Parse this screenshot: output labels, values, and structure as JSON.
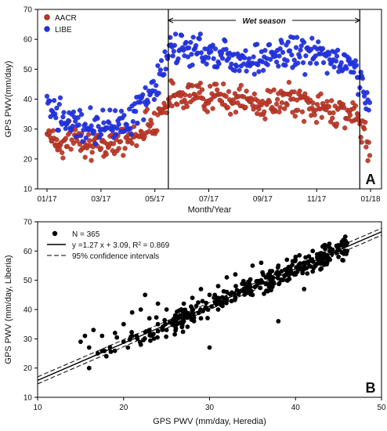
{
  "chart_data": [
    {
      "panel_label": "A",
      "type": "scatter",
      "xlabel": "Month/Year",
      "ylabel": "GPS PWV(mm/day)",
      "ylim": [
        10,
        70
      ],
      "x_tick_labels": [
        "01/17",
        "03/17",
        "05/17",
        "07/17",
        "09/17",
        "11/17",
        "01/18"
      ],
      "y_ticks": [
        10,
        20,
        30,
        40,
        50,
        60,
        70
      ],
      "legend_position": "top-left",
      "annotation": "Wet season",
      "wet_season_start_month": 4.5,
      "wet_season_end_month": 11.6,
      "series": [
        {
          "name": "AACR",
          "color": "#8B2512",
          "marker_fill": "#c0392b",
          "values_by_month": [
            {
              "month": 0,
              "pwv": 30
            },
            {
              "month": 0.5,
              "pwv": 24
            },
            {
              "month": 1,
              "pwv": 28
            },
            {
              "month": 1.5,
              "pwv": 26
            },
            {
              "month": 2,
              "pwv": 23
            },
            {
              "month": 2.5,
              "pwv": 27
            },
            {
              "month": 3,
              "pwv": 26
            },
            {
              "month": 3.5,
              "pwv": 30
            },
            {
              "month": 4,
              "pwv": 33
            },
            {
              "month": 4.5,
              "pwv": 40
            },
            {
              "month": 5,
              "pwv": 42
            },
            {
              "month": 6,
              "pwv": 41
            },
            {
              "month": 7,
              "pwv": 40
            },
            {
              "month": 8,
              "pwv": 38
            },
            {
              "month": 9,
              "pwv": 40
            },
            {
              "month": 10,
              "pwv": 37
            },
            {
              "month": 11,
              "pwv": 36
            },
            {
              "month": 11.5,
              "pwv": 34
            },
            {
              "month": 12,
              "pwv": 22
            }
          ]
        },
        {
          "name": "LIBE",
          "color": "#1f2bd6",
          "marker_fill": "#2233dd",
          "values_by_month": [
            {
              "month": 0,
              "pwv": 41
            },
            {
              "month": 0.5,
              "pwv": 34
            },
            {
              "month": 1,
              "pwv": 33
            },
            {
              "month": 1.5,
              "pwv": 31
            },
            {
              "month": 2,
              "pwv": 31
            },
            {
              "month": 2.5,
              "pwv": 32
            },
            {
              "month": 3,
              "pwv": 33
            },
            {
              "month": 3.5,
              "pwv": 38
            },
            {
              "month": 4,
              "pwv": 44
            },
            {
              "month": 4.5,
              "pwv": 55
            },
            {
              "month": 5,
              "pwv": 57
            },
            {
              "month": 6,
              "pwv": 56
            },
            {
              "month": 7,
              "pwv": 54
            },
            {
              "month": 8,
              "pwv": 53
            },
            {
              "month": 9,
              "pwv": 56
            },
            {
              "month": 10,
              "pwv": 55
            },
            {
              "month": 11,
              "pwv": 52
            },
            {
              "month": 11.5,
              "pwv": 50
            },
            {
              "month": 12,
              "pwv": 35
            }
          ]
        }
      ]
    },
    {
      "panel_label": "B",
      "type": "scatter",
      "xlabel": "GPS PWV (mm/day, Heredia)",
      "ylabel": "GPS PWV (mm/day, Liberia)",
      "xlim": [
        10,
        50
      ],
      "ylim": [
        10,
        70
      ],
      "x_ticks": [
        10,
        20,
        30,
        40,
        50
      ],
      "y_ticks": [
        10,
        20,
        30,
        40,
        50,
        60,
        70
      ],
      "legend_position": "top-left",
      "n_label": "N = 365",
      "fit_label": "y =1.27 x + 3.09, R² = 0.869",
      "ci_label": "95% confidence intervals",
      "fit": {
        "slope": 1.27,
        "intercept": 3.09,
        "x_range": [
          10,
          50
        ]
      },
      "ci_offset": 1.2,
      "points_sample": [
        [
          15,
          29
        ],
        [
          15.5,
          31
        ],
        [
          16,
          20
        ],
        [
          16,
          27
        ],
        [
          16.5,
          33
        ],
        [
          17,
          25
        ],
        [
          17.5,
          31
        ],
        [
          18,
          24
        ],
        [
          19,
          32
        ],
        [
          20,
          29
        ],
        [
          20,
          35
        ],
        [
          21,
          31
        ],
        [
          21,
          39
        ],
        [
          22,
          28
        ],
        [
          22,
          40
        ],
        [
          22.5,
          45
        ],
        [
          23,
          33
        ],
        [
          23,
          37
        ],
        [
          24,
          35
        ],
        [
          24,
          42
        ],
        [
          25,
          33
        ],
        [
          25,
          40
        ],
        [
          26,
          38
        ],
        [
          27,
          36
        ],
        [
          27,
          42
        ],
        [
          28,
          39
        ],
        [
          28,
          44
        ],
        [
          29,
          37
        ],
        [
          29,
          47
        ],
        [
          30,
          27
        ],
        [
          30,
          45
        ],
        [
          31,
          40
        ],
        [
          31,
          48
        ],
        [
          32,
          46
        ],
        [
          32,
          51
        ],
        [
          33,
          44
        ],
        [
          33,
          52
        ],
        [
          34,
          47
        ],
        [
          35,
          45
        ],
        [
          35,
          55
        ],
        [
          36,
          50
        ],
        [
          36,
          56
        ],
        [
          37,
          48
        ],
        [
          37,
          52
        ],
        [
          38,
          36
        ],
        [
          38,
          55
        ],
        [
          39,
          50
        ],
        [
          39,
          57
        ],
        [
          40,
          52
        ],
        [
          40,
          58
        ],
        [
          41,
          47
        ],
        [
          41,
          55
        ],
        [
          42,
          53
        ],
        [
          42,
          60
        ],
        [
          43,
          54
        ],
        [
          43,
          58
        ],
        [
          44,
          57
        ],
        [
          44,
          61
        ],
        [
          45,
          58
        ],
        [
          45,
          62
        ],
        [
          46,
          60
        ]
      ]
    }
  ]
}
